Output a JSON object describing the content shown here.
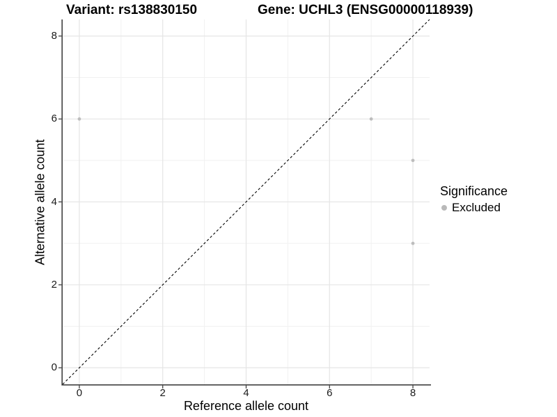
{
  "header": {
    "variant_title": "Variant: rs138830150",
    "gene_title": "Gene: UCHL3 (ENSG00000118939)"
  },
  "chart_data": {
    "type": "scatter",
    "title_left": "Variant: rs138830150",
    "title_right": "Gene: UCHL3 (ENSG00000118939)",
    "xlabel": "Reference allele count",
    "ylabel": "Alternative allele count",
    "xlim": [
      -0.4,
      8.4
    ],
    "ylim": [
      -0.4,
      8.4
    ],
    "x_ticks": [
      0,
      2,
      4,
      6,
      8
    ],
    "y_ticks": [
      0,
      2,
      4,
      6,
      8
    ],
    "x_minor_ticks": [
      1,
      3,
      5,
      7
    ],
    "y_minor_ticks": [
      1,
      3,
      5,
      7
    ],
    "grid": true,
    "identity_line": {
      "style": "dashed",
      "color": "#000000",
      "slope": 1,
      "intercept": 0
    },
    "series": [
      {
        "name": "Excluded",
        "color": "#bdbdbd",
        "points": [
          {
            "x": 0,
            "y": 6
          },
          {
            "x": 7,
            "y": 6
          },
          {
            "x": 8,
            "y": 5
          },
          {
            "x": 8,
            "y": 3
          }
        ]
      }
    ],
    "legend": {
      "title": "Significance",
      "position": "right",
      "items": [
        {
          "label": "Excluded",
          "color": "#b9b9b9"
        }
      ]
    },
    "colors": {
      "major_grid": "#e5e5e5",
      "minor_grid": "#f1f1f1",
      "axis_line": "#404040",
      "tick_mark": "#333333",
      "tick_text": "#1a1a1a"
    }
  }
}
